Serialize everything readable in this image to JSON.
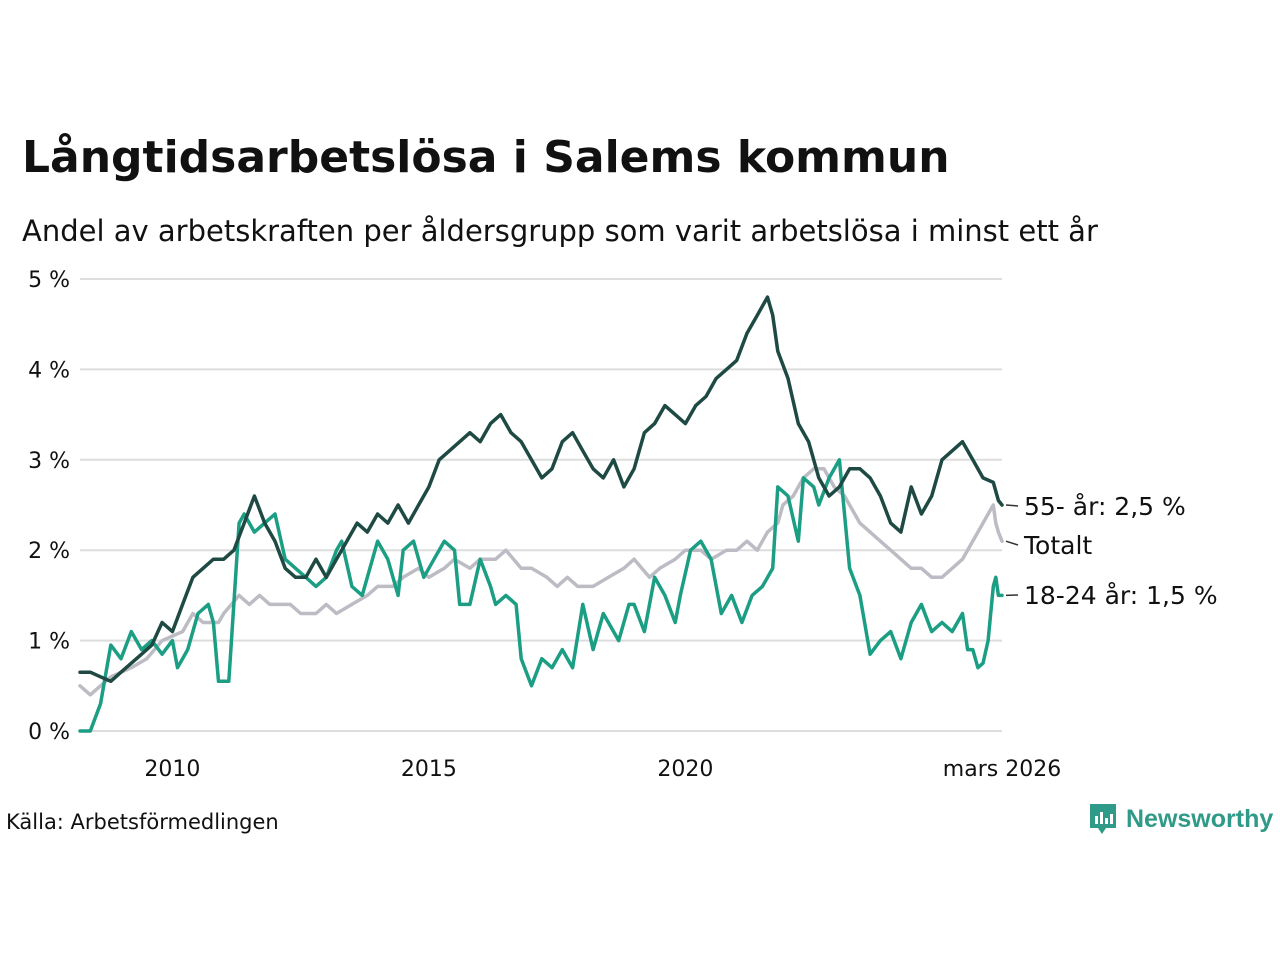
{
  "title": "Långtidsarbetslösa i Salems kommun",
  "subtitle": "Andel av arbetskraften per åldersgrupp som varit arbetslösa i minst ett år",
  "source": "Källa: Arbetsförmedlingen",
  "brand": "Newsworthy",
  "colors": {
    "grid": "#dddddd",
    "accent": "#2e9a87"
  },
  "chart_data": {
    "type": "line",
    "title": "Långtidsarbetslösa i Salems kommun",
    "xlabel": "",
    "ylabel": "",
    "xlim": [
      2008.2,
      2026.17
    ],
    "ylim": [
      0,
      5
    ],
    "grid": true,
    "y_ticks": [
      0,
      1,
      2,
      3,
      4,
      5
    ],
    "y_tick_labels": [
      "0 %",
      "1 %",
      "2 %",
      "3 %",
      "4 %",
      "5 %"
    ],
    "x_ticks": [
      2010,
      2015,
      2020,
      2026.17
    ],
    "x_tick_labels": [
      "2010",
      "2015",
      "2020",
      "mars 2026"
    ],
    "series": [
      {
        "name": "Totalt",
        "label": "Totalt",
        "color": "#bdbcc4",
        "points": [
          [
            2008.2,
            0.5
          ],
          [
            2008.4,
            0.4
          ],
          [
            2008.8,
            0.6
          ],
          [
            2009.2,
            0.7
          ],
          [
            2009.5,
            0.8
          ],
          [
            2009.8,
            1.0
          ],
          [
            2010.2,
            1.1
          ],
          [
            2010.4,
            1.3
          ],
          [
            2010.6,
            1.2
          ],
          [
            2010.9,
            1.2
          ],
          [
            2011.0,
            1.3
          ],
          [
            2011.3,
            1.5
          ],
          [
            2011.5,
            1.4
          ],
          [
            2011.7,
            1.5
          ],
          [
            2011.9,
            1.4
          ],
          [
            2012.3,
            1.4
          ],
          [
            2012.5,
            1.3
          ],
          [
            2012.8,
            1.3
          ],
          [
            2013.0,
            1.4
          ],
          [
            2013.2,
            1.3
          ],
          [
            2013.5,
            1.4
          ],
          [
            2013.8,
            1.5
          ],
          [
            2014.0,
            1.6
          ],
          [
            2014.3,
            1.6
          ],
          [
            2014.5,
            1.7
          ],
          [
            2014.8,
            1.8
          ],
          [
            2015.0,
            1.7
          ],
          [
            2015.3,
            1.8
          ],
          [
            2015.5,
            1.9
          ],
          [
            2015.8,
            1.8
          ],
          [
            2016.0,
            1.9
          ],
          [
            2016.3,
            1.9
          ],
          [
            2016.5,
            2.0
          ],
          [
            2016.8,
            1.8
          ],
          [
            2017.0,
            1.8
          ],
          [
            2017.3,
            1.7
          ],
          [
            2017.5,
            1.6
          ],
          [
            2017.7,
            1.7
          ],
          [
            2017.9,
            1.6
          ],
          [
            2018.2,
            1.6
          ],
          [
            2018.5,
            1.7
          ],
          [
            2018.8,
            1.8
          ],
          [
            2019.0,
            1.9
          ],
          [
            2019.3,
            1.7
          ],
          [
            2019.5,
            1.8
          ],
          [
            2019.8,
            1.9
          ],
          [
            2020.0,
            2.0
          ],
          [
            2020.3,
            2.0
          ],
          [
            2020.5,
            1.9
          ],
          [
            2020.8,
            2.0
          ],
          [
            2021.0,
            2.0
          ],
          [
            2021.2,
            2.1
          ],
          [
            2021.4,
            2.0
          ],
          [
            2021.6,
            2.2
          ],
          [
            2021.8,
            2.3
          ],
          [
            2021.9,
            2.5
          ],
          [
            2022.1,
            2.6
          ],
          [
            2022.3,
            2.8
          ],
          [
            2022.5,
            2.9
          ],
          [
            2022.7,
            2.9
          ],
          [
            2022.9,
            2.7
          ],
          [
            2023.1,
            2.6
          ],
          [
            2023.2,
            2.5
          ],
          [
            2023.4,
            2.3
          ],
          [
            2023.6,
            2.2
          ],
          [
            2023.8,
            2.1
          ],
          [
            2024.0,
            2.0
          ],
          [
            2024.2,
            1.9
          ],
          [
            2024.4,
            1.8
          ],
          [
            2024.6,
            1.8
          ],
          [
            2024.8,
            1.7
          ],
          [
            2025.0,
            1.7
          ],
          [
            2025.2,
            1.8
          ],
          [
            2025.4,
            1.9
          ],
          [
            2025.5,
            2.0
          ],
          [
            2025.7,
            2.2
          ],
          [
            2025.8,
            2.3
          ],
          [
            2025.9,
            2.4
          ],
          [
            2026.0,
            2.5
          ],
          [
            2026.05,
            2.3
          ],
          [
            2026.1,
            2.2
          ],
          [
            2026.17,
            2.1
          ]
        ]
      },
      {
        "name": "18-24 år",
        "label": "18-24 år: 1,5 %",
        "color": "#1b9e84",
        "points": [
          [
            2008.2,
            0.0
          ],
          [
            2008.4,
            0.0
          ],
          [
            2008.6,
            0.3
          ],
          [
            2008.8,
            0.95
          ],
          [
            2009.0,
            0.8
          ],
          [
            2009.2,
            1.1
          ],
          [
            2009.4,
            0.9
          ],
          [
            2009.6,
            1.0
          ],
          [
            2009.8,
            0.85
          ],
          [
            2010.0,
            1.0
          ],
          [
            2010.1,
            0.7
          ],
          [
            2010.3,
            0.9
          ],
          [
            2010.5,
            1.3
          ],
          [
            2010.7,
            1.4
          ],
          [
            2010.8,
            1.2
          ],
          [
            2010.9,
            0.55
          ],
          [
            2011.1,
            0.55
          ],
          [
            2011.3,
            2.3
          ],
          [
            2011.4,
            2.4
          ],
          [
            2011.6,
            2.2
          ],
          [
            2011.8,
            2.3
          ],
          [
            2012.0,
            2.4
          ],
          [
            2012.2,
            1.9
          ],
          [
            2012.4,
            1.8
          ],
          [
            2012.6,
            1.7
          ],
          [
            2012.8,
            1.6
          ],
          [
            2013.0,
            1.7
          ],
          [
            2013.2,
            2.0
          ],
          [
            2013.3,
            2.1
          ],
          [
            2013.5,
            1.6
          ],
          [
            2013.7,
            1.5
          ],
          [
            2014.0,
            2.1
          ],
          [
            2014.2,
            1.9
          ],
          [
            2014.4,
            1.5
          ],
          [
            2014.5,
            2.0
          ],
          [
            2014.7,
            2.1
          ],
          [
            2014.9,
            1.7
          ],
          [
            2015.1,
            1.9
          ],
          [
            2015.3,
            2.1
          ],
          [
            2015.5,
            2.0
          ],
          [
            2015.6,
            1.4
          ],
          [
            2015.8,
            1.4
          ],
          [
            2016.0,
            1.9
          ],
          [
            2016.2,
            1.6
          ],
          [
            2016.3,
            1.4
          ],
          [
            2016.5,
            1.5
          ],
          [
            2016.7,
            1.4
          ],
          [
            2016.8,
            0.8
          ],
          [
            2017.0,
            0.5
          ],
          [
            2017.2,
            0.8
          ],
          [
            2017.4,
            0.7
          ],
          [
            2017.6,
            0.9
          ],
          [
            2017.8,
            0.7
          ],
          [
            2018.0,
            1.4
          ],
          [
            2018.2,
            0.9
          ],
          [
            2018.4,
            1.3
          ],
          [
            2018.6,
            1.1
          ],
          [
            2018.7,
            1.0
          ],
          [
            2018.9,
            1.4
          ],
          [
            2019.0,
            1.4
          ],
          [
            2019.2,
            1.1
          ],
          [
            2019.4,
            1.7
          ],
          [
            2019.6,
            1.5
          ],
          [
            2019.8,
            1.2
          ],
          [
            2019.9,
            1.5
          ],
          [
            2020.1,
            2.0
          ],
          [
            2020.3,
            2.1
          ],
          [
            2020.5,
            1.9
          ],
          [
            2020.7,
            1.3
          ],
          [
            2020.9,
            1.5
          ],
          [
            2021.1,
            1.2
          ],
          [
            2021.3,
            1.5
          ],
          [
            2021.5,
            1.6
          ],
          [
            2021.7,
            1.8
          ],
          [
            2021.8,
            2.7
          ],
          [
            2022.0,
            2.6
          ],
          [
            2022.2,
            2.1
          ],
          [
            2022.3,
            2.8
          ],
          [
            2022.5,
            2.7
          ],
          [
            2022.6,
            2.5
          ],
          [
            2022.8,
            2.8
          ],
          [
            2023.0,
            3.0
          ],
          [
            2023.1,
            2.4
          ],
          [
            2023.2,
            1.8
          ],
          [
            2023.4,
            1.5
          ],
          [
            2023.6,
            0.85
          ],
          [
            2023.8,
            1.0
          ],
          [
            2024.0,
            1.1
          ],
          [
            2024.2,
            0.8
          ],
          [
            2024.4,
            1.2
          ],
          [
            2024.6,
            1.4
          ],
          [
            2024.8,
            1.1
          ],
          [
            2025.0,
            1.2
          ],
          [
            2025.2,
            1.1
          ],
          [
            2025.4,
            1.3
          ],
          [
            2025.5,
            0.9
          ],
          [
            2025.6,
            0.9
          ],
          [
            2025.7,
            0.7
          ],
          [
            2025.8,
            0.75
          ],
          [
            2025.9,
            1.0
          ],
          [
            2026.0,
            1.6
          ],
          [
            2026.05,
            1.7
          ],
          [
            2026.1,
            1.5
          ],
          [
            2026.17,
            1.5
          ]
        ]
      },
      {
        "name": "55- år",
        "label": "55- år: 2,5 %",
        "color": "#1f4a43",
        "points": [
          [
            2008.2,
            0.65
          ],
          [
            2008.4,
            0.65
          ],
          [
            2008.6,
            0.6
          ],
          [
            2008.8,
            0.55
          ],
          [
            2009.0,
            0.65
          ],
          [
            2009.2,
            0.75
          ],
          [
            2009.4,
            0.85
          ],
          [
            2009.6,
            0.95
          ],
          [
            2009.8,
            1.2
          ],
          [
            2010.0,
            1.1
          ],
          [
            2010.2,
            1.4
          ],
          [
            2010.4,
            1.7
          ],
          [
            2010.6,
            1.8
          ],
          [
            2010.8,
            1.9
          ],
          [
            2011.0,
            1.9
          ],
          [
            2011.2,
            2.0
          ],
          [
            2011.4,
            2.3
          ],
          [
            2011.6,
            2.6
          ],
          [
            2011.8,
            2.3
          ],
          [
            2012.0,
            2.1
          ],
          [
            2012.2,
            1.8
          ],
          [
            2012.4,
            1.7
          ],
          [
            2012.6,
            1.7
          ],
          [
            2012.8,
            1.9
          ],
          [
            2013.0,
            1.7
          ],
          [
            2013.2,
            1.9
          ],
          [
            2013.4,
            2.1
          ],
          [
            2013.6,
            2.3
          ],
          [
            2013.8,
            2.2
          ],
          [
            2014.0,
            2.4
          ],
          [
            2014.2,
            2.3
          ],
          [
            2014.4,
            2.5
          ],
          [
            2014.6,
            2.3
          ],
          [
            2014.8,
            2.5
          ],
          [
            2015.0,
            2.7
          ],
          [
            2015.2,
            3.0
          ],
          [
            2015.4,
            3.1
          ],
          [
            2015.6,
            3.2
          ],
          [
            2015.8,
            3.3
          ],
          [
            2016.0,
            3.2
          ],
          [
            2016.2,
            3.4
          ],
          [
            2016.4,
            3.5
          ],
          [
            2016.6,
            3.3
          ],
          [
            2016.8,
            3.2
          ],
          [
            2017.0,
            3.0
          ],
          [
            2017.2,
            2.8
          ],
          [
            2017.4,
            2.9
          ],
          [
            2017.6,
            3.2
          ],
          [
            2017.8,
            3.3
          ],
          [
            2018.0,
            3.1
          ],
          [
            2018.2,
            2.9
          ],
          [
            2018.4,
            2.8
          ],
          [
            2018.6,
            3.0
          ],
          [
            2018.8,
            2.7
          ],
          [
            2019.0,
            2.9
          ],
          [
            2019.2,
            3.3
          ],
          [
            2019.4,
            3.4
          ],
          [
            2019.6,
            3.6
          ],
          [
            2019.8,
            3.5
          ],
          [
            2020.0,
            3.4
          ],
          [
            2020.2,
            3.6
          ],
          [
            2020.4,
            3.7
          ],
          [
            2020.6,
            3.9
          ],
          [
            2020.8,
            4.0
          ],
          [
            2021.0,
            4.1
          ],
          [
            2021.2,
            4.4
          ],
          [
            2021.4,
            4.6
          ],
          [
            2021.6,
            4.8
          ],
          [
            2021.7,
            4.6
          ],
          [
            2021.8,
            4.2
          ],
          [
            2022.0,
            3.9
          ],
          [
            2022.2,
            3.4
          ],
          [
            2022.4,
            3.2
          ],
          [
            2022.6,
            2.8
          ],
          [
            2022.8,
            2.6
          ],
          [
            2023.0,
            2.7
          ],
          [
            2023.2,
            2.9
          ],
          [
            2023.4,
            2.9
          ],
          [
            2023.6,
            2.8
          ],
          [
            2023.8,
            2.6
          ],
          [
            2024.0,
            2.3
          ],
          [
            2024.2,
            2.2
          ],
          [
            2024.4,
            2.7
          ],
          [
            2024.6,
            2.4
          ],
          [
            2024.8,
            2.6
          ],
          [
            2025.0,
            3.0
          ],
          [
            2025.2,
            3.1
          ],
          [
            2025.4,
            3.2
          ],
          [
            2025.6,
            3.0
          ],
          [
            2025.8,
            2.8
          ],
          [
            2026.0,
            2.75
          ],
          [
            2026.1,
            2.55
          ],
          [
            2026.17,
            2.5
          ]
        ]
      }
    ]
  }
}
